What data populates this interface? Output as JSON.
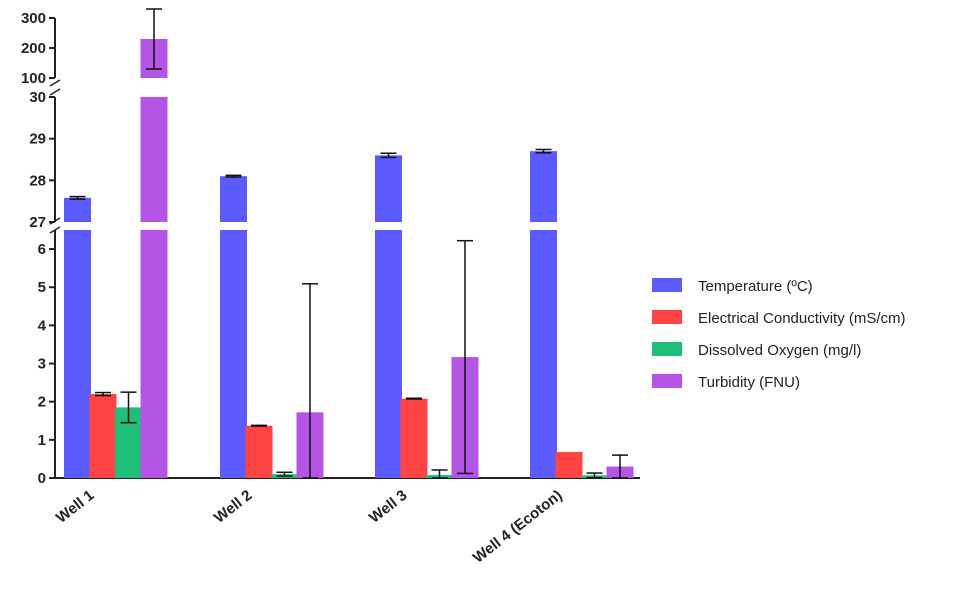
{
  "chart_data": {
    "type": "bar",
    "categories": [
      "Well 1",
      "Well 2",
      "Well 3",
      "Well 4 (Ecoton)"
    ],
    "series": [
      {
        "name": "Temperature (ºC)",
        "color": "#5B5BFF",
        "values": [
          27.58,
          28.1,
          28.6,
          28.7
        ],
        "errors": [
          0.03,
          0.02,
          0.05,
          0.04
        ]
      },
      {
        "name": "Electrical Conductivity (mS/cm)",
        "color": "#FF4444",
        "values": [
          2.2,
          1.37,
          2.08,
          0.68
        ],
        "errors": [
          0.04,
          0.01,
          0.01,
          0.0
        ]
      },
      {
        "name": "Dissolved Oxygen (mg/l)",
        "color": "#1FBF7A",
        "values": [
          1.85,
          0.1,
          0.08,
          0.07
        ],
        "errors": [
          0.4,
          0.05,
          0.13,
          0.06
        ]
      },
      {
        "name": "Turbidity (FNU)",
        "color": "#B455E6",
        "values": [
          230,
          1.72,
          3.17,
          0.3
        ],
        "errors": [
          100,
          3.37,
          3.05,
          0.3
        ]
      }
    ],
    "axis_segments": [
      {
        "range": [
          0,
          6.5
        ],
        "ticks": [
          0,
          1,
          2,
          3,
          4,
          5,
          6
        ]
      },
      {
        "range": [
          27,
          30
        ],
        "ticks": [
          27,
          28,
          29,
          30
        ]
      },
      {
        "range": [
          100,
          300
        ],
        "ticks": [
          100,
          200,
          300
        ]
      }
    ],
    "legend_position": "right",
    "grid": false
  }
}
